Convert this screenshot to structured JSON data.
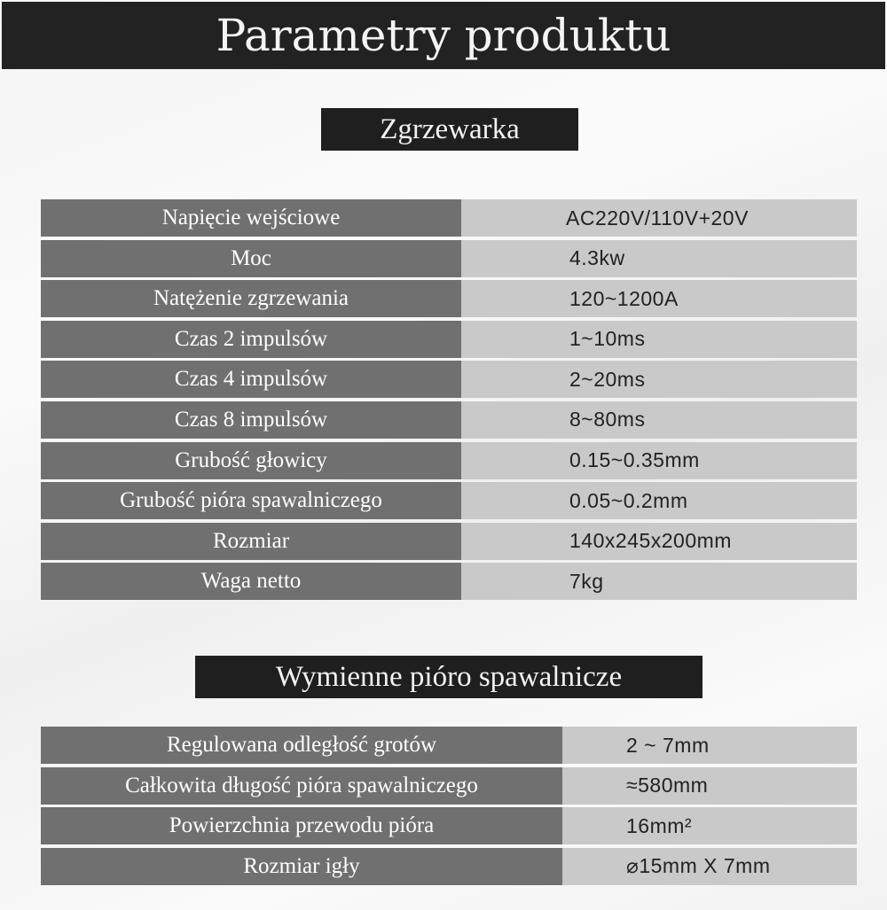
{
  "title": "Parametry produktu",
  "sections": [
    {
      "heading": "Zgrzewarka",
      "rows": [
        {
          "label": "Napięcie wejściowe",
          "value": "AC220V/110V+20V"
        },
        {
          "label": "Moc",
          "value": "4.3kw"
        },
        {
          "label": "Natężenie zgrzewania",
          "value": "120~1200A"
        },
        {
          "label": "Czas 2 impulsów",
          "value": "1~10ms"
        },
        {
          "label": "Czas 4 impulsów",
          "value": "2~20ms"
        },
        {
          "label": "Czas 8 impulsów",
          "value": "8~80ms"
        },
        {
          "label": "Grubość głowicy",
          "value": "0.15~0.35mm"
        },
        {
          "label": "Grubość pióra spawalniczego",
          "value": "0.05~0.2mm"
        },
        {
          "label": "Rozmiar",
          "value": "140x245x200mm"
        },
        {
          "label": "Waga netto",
          "value": "7kg"
        }
      ]
    },
    {
      "heading": "Wymienne pióro spawalnicze",
      "rows": [
        {
          "label": "Regulowana odległość grotów",
          "value": "2 ~ 7mm"
        },
        {
          "label": "Całkowita długość pióra spawalniczego",
          "value": "≈580mm"
        },
        {
          "label": "Powierzchnia przewodu pióra",
          "value": "16mm²"
        },
        {
          "label": "Rozmiar igły",
          "value": "⌀15mm X 7mm"
        }
      ]
    }
  ]
}
